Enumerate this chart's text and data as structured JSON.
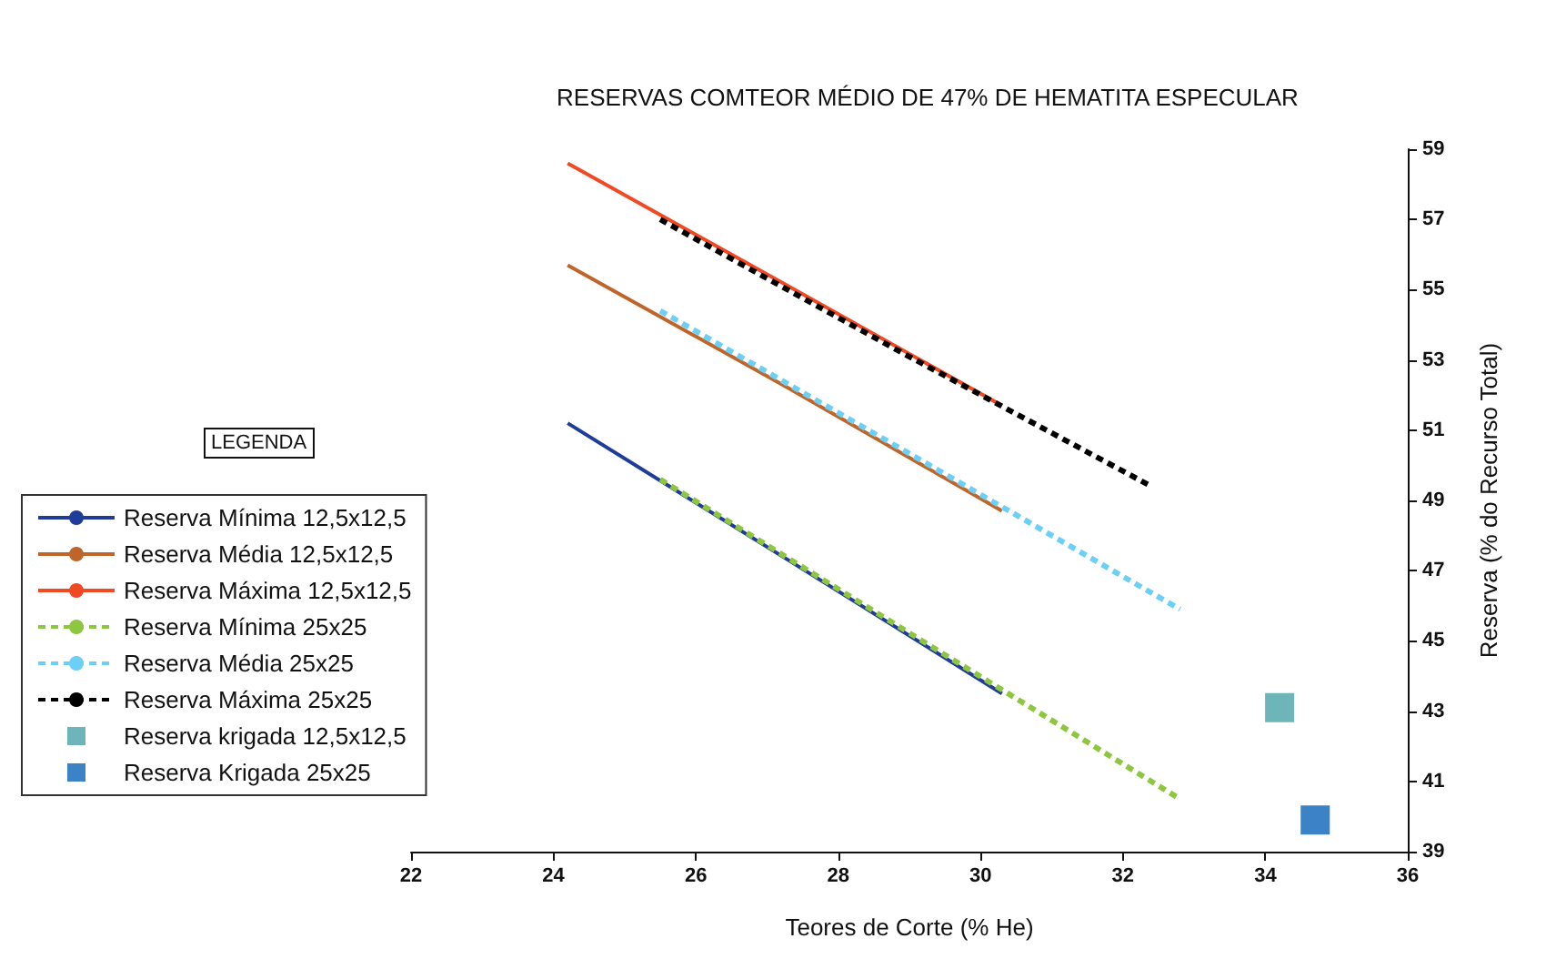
{
  "chart_data": {
    "type": "line",
    "title": "RESERVAS COMTEOR MÉDIO DE 47% DE HEMATITA ESPECULAR",
    "xlabel": "Teores de Corte (% He)",
    "ylabel": "Reserva (% do Recurso Total)",
    "legend_title": "LEGENDA",
    "legend": "left",
    "grid": false,
    "xlim": [
      22,
      36
    ],
    "xticks": [
      22,
      24,
      26,
      28,
      30,
      32,
      34,
      36
    ],
    "ylim": [
      39,
      59
    ],
    "yticks": [
      39,
      41,
      43,
      45,
      47,
      49,
      51,
      53,
      55,
      57,
      59
    ],
    "series": [
      {
        "name": "Reserva Mínima 12,5x12,5",
        "color": "#1f3c99",
        "x": [
          24.2,
          27.3,
          30.3
        ],
        "values": [
          51.2,
          47.3,
          43.5
        ],
        "line_style": "solid",
        "marker": "none"
      },
      {
        "name": "Reserva Média 12,5x12,5",
        "color": "#c0652a",
        "x": [
          24.2,
          27.3,
          30.3
        ],
        "values": [
          55.7,
          52.2,
          48.7
        ],
        "line_style": "solid",
        "marker": "none"
      },
      {
        "name": "Reserva Máxima 12,5x12,5",
        "color": "#f04a24",
        "x": [
          24.2,
          27.3,
          30.3
        ],
        "values": [
          58.6,
          55.1,
          51.7
        ],
        "line_style": "solid",
        "marker": "none"
      },
      {
        "name": "Reserva Mínima 25x25",
        "color": "#8dc63f",
        "x": [
          25.5,
          29.1,
          32.8
        ],
        "values": [
          49.6,
          45.1,
          40.5
        ],
        "line_style": "dashed",
        "marker": "none"
      },
      {
        "name": "Reserva Média 25x25",
        "color": "#6ccff6",
        "x": [
          25.5,
          29.2,
          32.8
        ],
        "values": [
          54.4,
          50.1,
          45.9
        ],
        "line_style": "dashed",
        "marker": "none"
      },
      {
        "name": "Reserva Máxima 25x25",
        "color": "#000000",
        "x": [
          25.5,
          28.9,
          32.4
        ],
        "values": [
          57.0,
          53.2,
          49.4
        ],
        "line_style": "dashed",
        "marker": "none"
      },
      {
        "name": "Reserva krigada 12,5x12,5",
        "type": "scatter",
        "color": "#4aa3a8",
        "x": [
          34.2
        ],
        "values": [
          43.1
        ],
        "marker": "square"
      },
      {
        "name": "Reserva Krigada 25x25",
        "type": "scatter",
        "color": "#0a63b8",
        "x": [
          34.7
        ],
        "values": [
          39.9
        ],
        "marker": "square"
      }
    ]
  }
}
